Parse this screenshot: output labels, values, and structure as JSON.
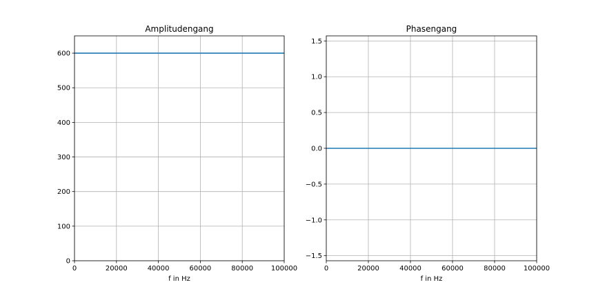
{
  "chart_data": [
    {
      "type": "line",
      "title": "Amplitudengang",
      "xlabel": "f in Hz",
      "ylabel": "",
      "xlim": [
        0,
        100000
      ],
      "ylim": [
        0,
        650
      ],
      "xticks": [
        0,
        20000,
        40000,
        60000,
        80000,
        100000
      ],
      "xtick_labels": [
        "0",
        "20000",
        "40000",
        "60000",
        "80000",
        "100000"
      ],
      "yticks": [
        0,
        100,
        200,
        300,
        400,
        500,
        600
      ],
      "ytick_labels": [
        "0",
        "100",
        "200",
        "300",
        "400",
        "500",
        "600"
      ],
      "grid": true,
      "series": [
        {
          "color": "#1f77b4",
          "x": [
            0,
            100000
          ],
          "y": [
            600,
            600
          ]
        }
      ]
    },
    {
      "type": "line",
      "title": "Phasengang",
      "xlabel": "f in Hz",
      "ylabel": "",
      "xlim": [
        0,
        100000
      ],
      "ylim": [
        -1.5708,
        1.5708
      ],
      "xticks": [
        0,
        20000,
        40000,
        60000,
        80000,
        100000
      ],
      "xtick_labels": [
        "0",
        "20000",
        "40000",
        "60000",
        "80000",
        "100000"
      ],
      "yticks": [
        -1.5,
        -1.0,
        -0.5,
        0.0,
        0.5,
        1.0,
        1.5
      ],
      "ytick_labels": [
        "−1.5",
        "−1.0",
        "−0.5",
        "0.0",
        "0.5",
        "1.0",
        "1.5"
      ],
      "grid": true,
      "series": [
        {
          "color": "#1f77b4",
          "x": [
            0,
            100000
          ],
          "y": [
            0,
            0
          ]
        }
      ]
    }
  ]
}
